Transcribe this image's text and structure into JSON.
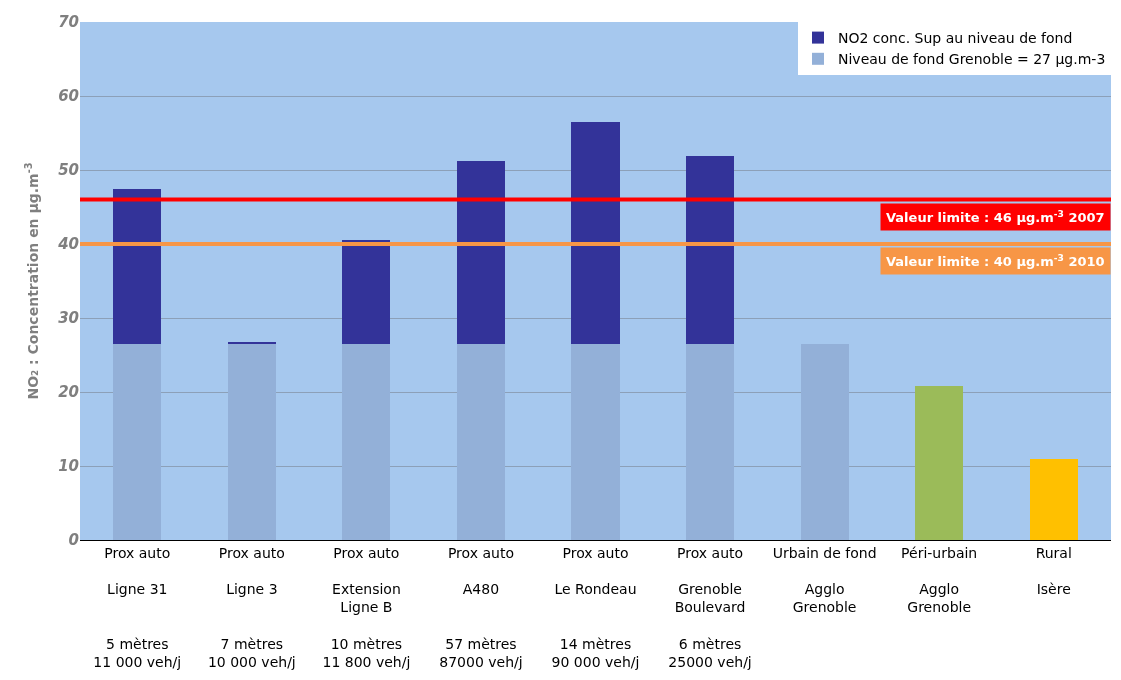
{
  "chart_data": {
    "type": "bar",
    "stacked": true,
    "categories": [
      "Prox auto\n\nLigne 31\n\n\n5 mètres\n11 000 veh/j",
      "Prox auto\n\nLigne 3\n\n\n7 mètres\n10 000 veh/j",
      "Prox auto\n\nExtension\nLigne B\n\n10 mètres\n11 800 veh/j",
      "Prox auto\n\nA480\n\n\n57 mètres\n87000 veh/j",
      "Prox auto\n\nLe Rondeau\n\n\n14 mètres\n90 000 veh/j",
      "Prox auto\n\nGrenoble\nBoulevard\n\n6 mètres\n25000 veh/j",
      "Urbain de fond\n\nAgglo\nGrenoble",
      "Péri-urbain\n\nAgglo\nGrenoble",
      "Rural\n\nIsère"
    ],
    "series": [
      {
        "name": "Niveau de fond Grenoble = 27 µg.m-3",
        "color": "#93b0d8",
        "colors": [
          "#93b0d8",
          "#93b0d8",
          "#93b0d8",
          "#93b0d8",
          "#93b0d8",
          "#93b0d8",
          "#93b0d8",
          "#9bbb59",
          "#ffc000"
        ],
        "values": [
          26.5,
          26.5,
          26.5,
          26.5,
          26.5,
          26.5,
          26.5,
          20.8,
          11.0
        ]
      },
      {
        "name": "NO2 conc. Sup au niveau de fond",
        "color": "#333399",
        "values": [
          20.9,
          0.3,
          14.1,
          24.7,
          30.0,
          25.4,
          null,
          null,
          null
        ]
      }
    ],
    "ylabel": "NO₂ : Concentration en µg.m$^{-3}$",
    "ylim": [
      0,
      70
    ],
    "yticks": [
      0,
      10,
      20,
      30,
      40,
      50,
      60,
      70
    ],
    "grid": "y",
    "legend": "top right",
    "ref_lines": [
      {
        "axis": "y",
        "value": 46,
        "label": "Valeur limite : 46 µg.m$^{-3}$ 2007",
        "color": "#ff0000"
      },
      {
        "axis": "y",
        "value": 40,
        "label": "Valeur limite : 40 µg.m$^{-3}$ 2010",
        "color": "#f79646"
      }
    ]
  }
}
